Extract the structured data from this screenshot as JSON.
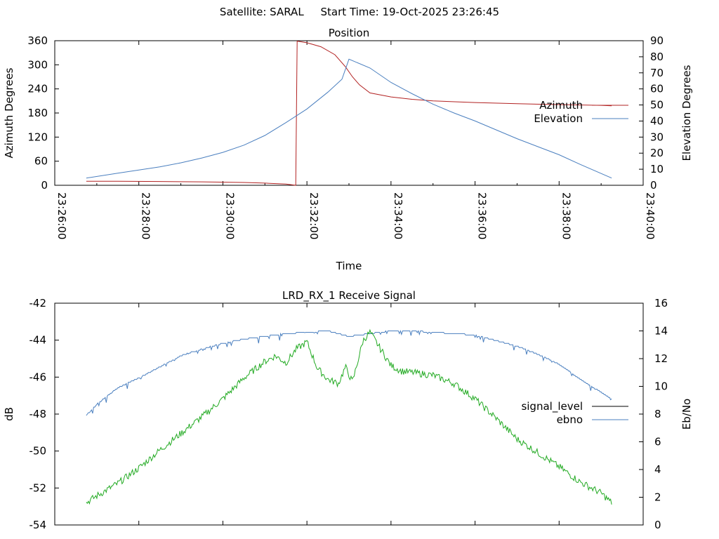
{
  "header": {
    "satellite_label": "Satellite: SARAL",
    "start_time_label": "Start Time: 19-Oct-2025 23:26:45"
  },
  "chart_data": [
    {
      "type": "line",
      "title": "Position",
      "xlabel": "Time",
      "ylabel": "Azimuth Degrees",
      "y2label": "Elevation Degrees",
      "x_ticks": [
        "23:26:00",
        "23:28:00",
        "23:30:00",
        "23:32:00",
        "23:34:00",
        "23:36:00",
        "23:38:00",
        "23:40:00"
      ],
      "y_ticks": [
        0,
        60,
        120,
        180,
        240,
        300,
        360
      ],
      "y2_ticks": [
        0,
        10,
        20,
        30,
        40,
        50,
        60,
        70,
        80,
        90
      ],
      "xlim": [
        "23:26:00",
        "23:40:00"
      ],
      "ylim": [
        0,
        360
      ],
      "y2lim": [
        0,
        90
      ],
      "grid": false,
      "legend": "right",
      "series": [
        {
          "name": "Azimuth",
          "axis": "left",
          "color": "#b22222",
          "x": [
            "23:26:45",
            "23:27:30",
            "23:28:30",
            "23:29:30",
            "23:30:30",
            "23:31:00",
            "23:31:30",
            "23:31:44",
            "23:31:46",
            "23:32:00",
            "23:32:20",
            "23:32:40",
            "23:32:55",
            "23:33:05",
            "23:33:15",
            "23:33:30",
            "23:34:00",
            "23:34:30",
            "23:35:00",
            "23:36:00",
            "23:37:00",
            "23:38:00",
            "23:39:00",
            "23:39:15"
          ],
          "values": [
            10,
            10,
            9.5,
            8.5,
            7,
            5.5,
            3,
            0,
            359,
            355,
            345,
            325,
            295,
            270,
            250,
            230,
            220,
            214,
            210,
            206,
            203,
            201,
            199,
            198
          ]
        },
        {
          "name": "Elevation",
          "axis": "right",
          "color": "#4a7fbf",
          "x": [
            "23:26:45",
            "23:27:30",
            "23:28:00",
            "23:28:30",
            "23:29:00",
            "23:29:30",
            "23:30:00",
            "23:30:30",
            "23:31:00",
            "23:31:30",
            "23:32:00",
            "23:32:30",
            "23:32:50",
            "23:33:00",
            "23:33:30",
            "23:34:00",
            "23:34:30",
            "23:35:00",
            "23:35:30",
            "23:36:00",
            "23:36:30",
            "23:37:00",
            "23:37:30",
            "23:38:00",
            "23:38:30",
            "23:39:15"
          ],
          "values": [
            4.5,
            7.5,
            9.5,
            11.5,
            14,
            17,
            20.5,
            25,
            31,
            39,
            47.5,
            58,
            66,
            78.5,
            73,
            64,
            57,
            50.5,
            45,
            40,
            34.5,
            29,
            24,
            19,
            13,
            4.5
          ]
        }
      ]
    },
    {
      "type": "line",
      "title": "LRD_RX_1 Receive Signal",
      "xlabel": "",
      "ylabel": "dB",
      "y2label": "Eb/No",
      "y_ticks": [
        -42,
        -44,
        -46,
        -48,
        -50,
        -52,
        -54
      ],
      "y2_ticks": [
        16,
        14,
        12,
        10,
        8,
        6,
        4,
        2,
        0
      ],
      "xlim": [
        "23:26:00",
        "23:40:00"
      ],
      "ylim": [
        -54,
        -42
      ],
      "y2lim": [
        0,
        16
      ],
      "grid": false,
      "legend": "right",
      "series": [
        {
          "name": "signal_level",
          "axis": "left",
          "color": "#000000",
          "values": []
        },
        {
          "name": "ebno",
          "axis": "right",
          "color": "#4a7fbf",
          "x": [
            "23:26:45",
            "23:27:00",
            "23:27:30",
            "23:28:00",
            "23:28:30",
            "23:29:00",
            "23:29:30",
            "23:30:00",
            "23:30:30",
            "23:31:00",
            "23:31:30",
            "23:32:00",
            "23:32:30",
            "23:33:00",
            "23:33:30",
            "23:34:00",
            "23:34:30",
            "23:35:00",
            "23:35:30",
            "23:36:00",
            "23:36:30",
            "23:37:00",
            "23:37:30",
            "23:38:00",
            "23:38:30",
            "23:39:15"
          ],
          "values": [
            7.9,
            8.7,
            9.9,
            10.6,
            11.4,
            12.2,
            12.7,
            13.1,
            13.4,
            13.6,
            13.8,
            13.9,
            14.0,
            13.6,
            13.8,
            14.0,
            14.0,
            13.9,
            13.8,
            13.7,
            13.3,
            12.9,
            12.3,
            11.6,
            10.5,
            9.1
          ]
        },
        {
          "name": "",
          "axis": "right",
          "color": "#22aa22",
          "x": [
            "23:26:45",
            "23:27:00",
            "23:27:30",
            "23:28:00",
            "23:28:30",
            "23:29:00",
            "23:29:30",
            "23:30:00",
            "23:30:30",
            "23:31:00",
            "23:31:15",
            "23:31:30",
            "23:31:45",
            "23:32:00",
            "23:32:15",
            "23:32:30",
            "23:32:45",
            "23:32:55",
            "23:33:05",
            "23:33:20",
            "23:33:30",
            "23:33:45",
            "23:34:00",
            "23:34:15",
            "23:34:30",
            "23:35:00",
            "23:35:30",
            "23:36:00",
            "23:36:30",
            "23:37:00",
            "23:37:30",
            "23:38:00",
            "23:38:30",
            "23:39:00",
            "23:39:15"
          ],
          "values": [
            1.6,
            2.1,
            3.0,
            4.1,
            5.4,
            6.6,
            7.8,
            9.1,
            10.6,
            11.8,
            12.2,
            11.7,
            12.7,
            13.2,
            11.3,
            10.5,
            10.2,
            11.4,
            10.3,
            13.3,
            13.9,
            12.7,
            11.5,
            11.1,
            11.0,
            10.8,
            10.2,
            9.1,
            7.7,
            6.2,
            5.2,
            4.2,
            3.1,
            2.3,
            1.6
          ]
        }
      ]
    }
  ]
}
